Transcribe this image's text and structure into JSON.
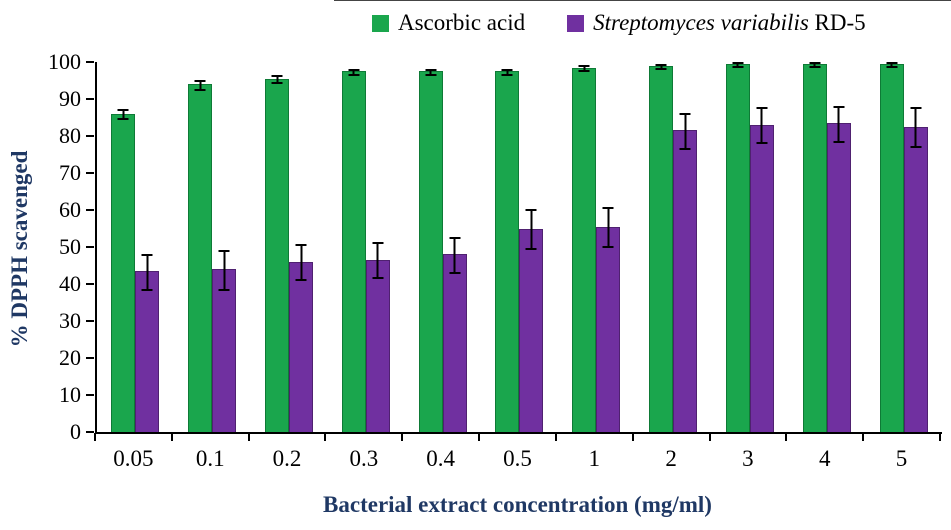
{
  "legend": {
    "items": [
      {
        "label": "Ascorbic acid",
        "color": "#1AA64D"
      },
      {
        "label_italic": "Streptomyces variabilis",
        "label_plain": " RD-5",
        "color": "#7030A0"
      }
    ]
  },
  "colors": {
    "ascorbic_fill": "#1AA64D",
    "rd5_fill": "#7030A0",
    "axis_title": "#1F3864"
  },
  "chart_data": {
    "type": "bar",
    "title": "",
    "xlabel": "Bacterial extract concentration (mg/ml)",
    "ylabel": "% DPPH scavenged",
    "ylim": [
      0,
      100
    ],
    "y_ticks": [
      0,
      10,
      20,
      30,
      40,
      50,
      60,
      70,
      80,
      90,
      100
    ],
    "grid": false,
    "legend_position": "top",
    "error_bars": true,
    "categories": [
      "0.05",
      "0.1",
      "0.2",
      "0.3",
      "0.4",
      "0.5",
      "1",
      "2",
      "3",
      "4",
      "5"
    ],
    "series": [
      {
        "name": "Ascorbic acid",
        "color": "#1AA64D",
        "values": [
          86,
          94,
          95.5,
          97.5,
          97.5,
          97.5,
          98.5,
          99,
          99.5,
          99.5,
          99.5
        ],
        "errors": [
          1.5,
          1.5,
          1.2,
          1,
          1,
          1,
          1,
          0.8,
          0.8,
          0.8,
          0.8
        ]
      },
      {
        "name": "Streptomyces variabilis RD-5",
        "color": "#7030A0",
        "values": [
          43.5,
          44,
          46,
          46.5,
          48,
          55,
          55.5,
          81.5,
          83,
          83.5,
          82.5
        ],
        "errors": [
          5,
          5.5,
          5,
          5,
          5,
          5.5,
          5.5,
          5,
          5,
          5,
          5.5
        ]
      }
    ]
  }
}
